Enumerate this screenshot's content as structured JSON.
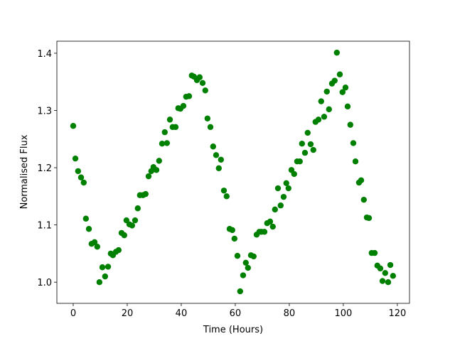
{
  "chart_data": {
    "type": "scatter",
    "x_label": "Time (Hours)",
    "y_label": "Normalised Flux",
    "color": "#008000",
    "xlim": [
      -6.05,
      124.5
    ],
    "ylim": [
      0.963,
      1.421
    ],
    "xticks": [
      0,
      20,
      40,
      60,
      80,
      100,
      120
    ],
    "yticks": [
      {
        "value": 1,
        "label": "1.0"
      },
      1.1,
      1.2,
      1.3,
      1.4
    ],
    "x": [
      0,
      0.8,
      1.8,
      2.9,
      3.9,
      4.7,
      5.8,
      6.8,
      7.9,
      8.9,
      9.7,
      10.8,
      11.8,
      12.9,
      13.9,
      14.7,
      15.8,
      16.8,
      17.9,
      18.9,
      19.7,
      20.8,
      21.8,
      22.9,
      23.9,
      24.7,
      25.8,
      26.8,
      27.9,
      28.9,
      29.7,
      30.8,
      31.8,
      32.9,
      33.9,
      34.7,
      35.8,
      36.8,
      37.9,
      38.9,
      39.7,
      40.8,
      41.8,
      42.9,
      43.9,
      44.7,
      45.8,
      46.8,
      47.9,
      48.9,
      49.7,
      50.8,
      51.8,
      52.9,
      53.9,
      54.7,
      55.8,
      56.8,
      57.9,
      58.9,
      59.7,
      60.8,
      61.8,
      62.9,
      63.9,
      64.7,
      65.8,
      66.8,
      67.9,
      68.9,
      69.7,
      70.8,
      71.8,
      72.9,
      73.9,
      74.7,
      75.8,
      76.8,
      77.9,
      78.9,
      79.7,
      80.8,
      81.8,
      82.9,
      83.9,
      84.7,
      85.8,
      86.8,
      87.9,
      88.9,
      89.7,
      90.8,
      91.8,
      92.9,
      93.9,
      94.7,
      95.8,
      96.8,
      97.6,
      98.7,
      99.7,
      100.8,
      101.6,
      102.6,
      103.7,
      104.5,
      105.8,
      106.6,
      107.6,
      108.7,
      109.5,
      110.5,
      111.6,
      112.6,
      113.7,
      114.5,
      115.5,
      116.6,
      117.4,
      118.4
    ],
    "values": [
      1.273,
      1.216,
      1.194,
      1.183,
      1.174,
      1.111,
      1.093,
      1.067,
      1.07,
      1.062,
      1.0,
      1.026,
      1.01,
      1.027,
      1.05,
      1.047,
      1.053,
      1.056,
      1.086,
      1.082,
      1.108,
      1.101,
      1.099,
      1.108,
      1.129,
      1.152,
      1.152,
      1.154,
      1.185,
      1.194,
      1.201,
      1.196,
      1.212,
      1.242,
      1.262,
      1.243,
      1.284,
      1.271,
      1.271,
      1.304,
      1.303,
      1.308,
      1.324,
      1.325,
      1.361,
      1.359,
      1.353,
      1.358,
      1.348,
      1.335,
      1.286,
      1.271,
      1.237,
      1.222,
      1.199,
      1.214,
      1.16,
      1.15,
      1.093,
      1.091,
      1.076,
      1.046,
      0.984,
      1.012,
      1.034,
      1.025,
      1.047,
      1.045,
      1.083,
      1.088,
      1.088,
      1.088,
      1.103,
      1.106,
      1.097,
      1.127,
      1.164,
      1.134,
      1.149,
      1.173,
      1.164,
      1.196,
      1.189,
      1.211,
      1.211,
      1.242,
      1.226,
      1.261,
      1.241,
      1.231,
      1.28,
      1.284,
      1.316,
      1.289,
      1.333,
      1.302,
      1.347,
      1.352,
      1.401,
      1.363,
      1.332,
      1.34,
      1.307,
      1.275,
      1.243,
      1.211,
      1.174,
      1.178,
      1.144,
      1.113,
      1.112,
      1.051,
      1.051,
      1.029,
      1.024,
      1.002,
      1.016,
      1.0,
      1.03,
      1.011
    ]
  }
}
